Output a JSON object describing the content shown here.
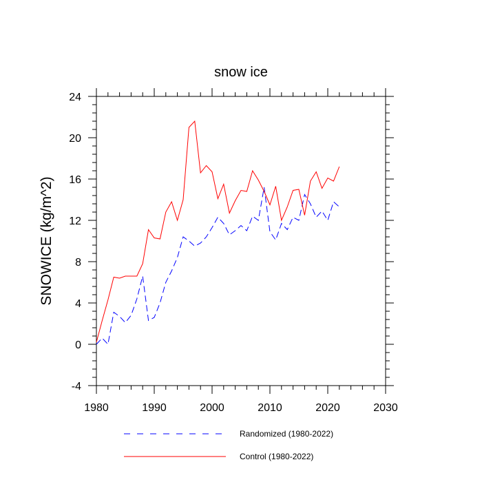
{
  "chart_data": {
    "type": "line",
    "title": "snow ice",
    "xlabel": "",
    "ylabel": "SNOWICE  (kg/m^2)",
    "xlim": [
      1980,
      2030
    ],
    "ylim": [
      -4,
      24
    ],
    "xticks": [
      1980,
      1990,
      2000,
      2010,
      2020,
      2030
    ],
    "yticks": [
      -4,
      0,
      4,
      8,
      12,
      16,
      20,
      24
    ],
    "grid": false,
    "legend_position": "bottom",
    "x": [
      1980,
      1981,
      1982,
      1983,
      1984,
      1985,
      1986,
      1987,
      1988,
      1989,
      1990,
      1991,
      1992,
      1993,
      1994,
      1995,
      1996,
      1997,
      1998,
      1999,
      2000,
      2001,
      2002,
      2003,
      2004,
      2005,
      2006,
      2007,
      2008,
      2009,
      2010,
      2011,
      2012,
      2013,
      2014,
      2015,
      2016,
      2017,
      2018,
      2019,
      2020,
      2021,
      2022
    ],
    "series": [
      {
        "name": "Randomized (1980-2022)",
        "color": "#0000ff",
        "dash": "dashed",
        "values": [
          0.0,
          0.6,
          0.0,
          3.1,
          2.7,
          2.1,
          2.8,
          4.4,
          6.6,
          2.3,
          2.6,
          4.0,
          6.0,
          7.1,
          8.4,
          10.4,
          10.0,
          9.5,
          9.8,
          10.4,
          11.3,
          12.3,
          11.7,
          10.6,
          11.0,
          11.5,
          11.0,
          12.4,
          12.0,
          15.2,
          10.9,
          10.1,
          11.7,
          11.1,
          12.3,
          12.0,
          14.5,
          13.6,
          12.3,
          12.9,
          12.0,
          13.8,
          13.3
        ]
      },
      {
        "name": "Control (1980-2022)",
        "color": "#ff0000",
        "dash": "solid",
        "values": [
          0.2,
          2.3,
          4.3,
          6.5,
          6.4,
          6.6,
          6.6,
          6.6,
          7.8,
          11.1,
          10.3,
          10.2,
          12.8,
          13.8,
          12.0,
          14.0,
          21.0,
          21.6,
          16.6,
          17.3,
          16.7,
          14.1,
          15.5,
          12.7,
          13.9,
          14.9,
          14.8,
          16.8,
          15.9,
          14.8,
          13.5,
          15.3,
          12.0,
          13.3,
          14.9,
          15.0,
          12.5,
          15.8,
          16.7,
          15.1,
          16.1,
          15.8,
          17.2
        ]
      }
    ]
  }
}
